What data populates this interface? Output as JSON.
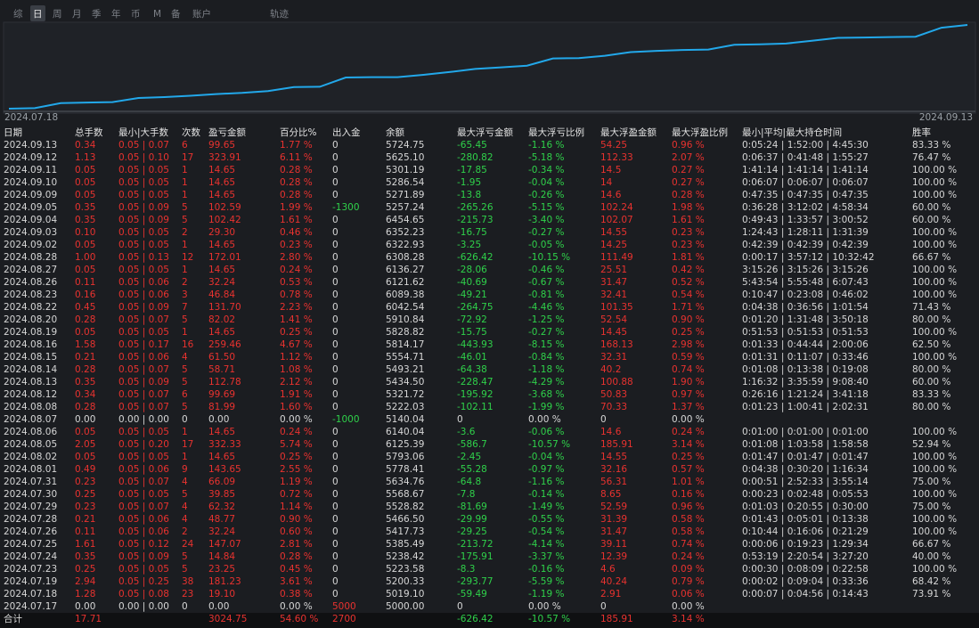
{
  "tabs": [
    "综",
    "日",
    "周",
    "月",
    "季",
    "年",
    "币",
    "M",
    "备",
    "账户",
    "轨迹"
  ],
  "chart": {
    "x_labels": [
      "2024.07.18",
      "2024.09.13"
    ]
  },
  "table": {
    "headers": [
      "日期",
      "总手数",
      "最小|大手数",
      "次数",
      "盈亏金额",
      "百分比%",
      "出入金",
      "余额",
      "最大浮亏金额",
      "最大浮亏比例",
      "最大浮盈金额",
      "最大浮盈比例",
      "最小|平均|最大持仓时间",
      "胜率"
    ],
    "rows": [
      [
        "2024.09.13",
        "0.34",
        "0.05 | 0.07",
        "6",
        "99.65",
        "1.77 %",
        "0",
        "5724.75",
        "-65.45",
        "-1.16 %",
        "54.25",
        "0.96 %",
        "0:05:24 | 1:52:00 | 4:45:30",
        "83.33 %"
      ],
      [
        "2024.09.12",
        "1.13",
        "0.05 | 0.10",
        "17",
        "323.91",
        "6.11 %",
        "0",
        "5625.10",
        "-280.82",
        "-5.18 %",
        "112.33",
        "2.07 %",
        "0:06:37 | 0:41:48 | 1:55:27",
        "76.47 %"
      ],
      [
        "2024.09.11",
        "0.05",
        "0.05 | 0.05",
        "1",
        "14.65",
        "0.28 %",
        "0",
        "5301.19",
        "-17.85",
        "-0.34 %",
        "14.5",
        "0.27 %",
        "1:41:14 | 1:41:14 | 1:41:14",
        "100.00 %"
      ],
      [
        "2024.09.10",
        "0.05",
        "0.05 | 0.05",
        "1",
        "14.65",
        "0.28 %",
        "0",
        "5286.54",
        "-1.95",
        "-0.04 %",
        "14",
        "0.27 %",
        "0:06:07 | 0:06:07 | 0:06:07",
        "100.00 %"
      ],
      [
        "2024.09.09",
        "0.05",
        "0.05 | 0.05",
        "1",
        "14.65",
        "0.28 %",
        "0",
        "5271.89",
        "-13.8",
        "-0.26 %",
        "14.6",
        "0.28 %",
        "0:47:35 | 0:47:35 | 0:47:35",
        "100.00 %"
      ],
      [
        "2024.09.05",
        "0.35",
        "0.05 | 0.09",
        "5",
        "102.59",
        "1.99 %",
        "-1300",
        "5257.24",
        "-265.26",
        "-5.15 %",
        "102.24",
        "1.98 %",
        "0:36:28 | 3:12:02 | 4:58:34",
        "60.00 %"
      ],
      [
        "2024.09.04",
        "0.35",
        "0.05 | 0.09",
        "5",
        "102.42",
        "1.61 %",
        "0",
        "6454.65",
        "-215.73",
        "-3.40 %",
        "102.07",
        "1.61 %",
        "0:49:43 | 1:33:57 | 3:00:52",
        "60.00 %"
      ],
      [
        "2024.09.03",
        "0.10",
        "0.05 | 0.05",
        "2",
        "29.30",
        "0.46 %",
        "0",
        "6352.23",
        "-16.75",
        "-0.27 %",
        "14.55",
        "0.23 %",
        "1:24:43 | 1:28:11 | 1:31:39",
        "100.00 %"
      ],
      [
        "2024.09.02",
        "0.05",
        "0.05 | 0.05",
        "1",
        "14.65",
        "0.23 %",
        "0",
        "6322.93",
        "-3.25",
        "-0.05 %",
        "14.25",
        "0.23 %",
        "0:42:39 | 0:42:39 | 0:42:39",
        "100.00 %"
      ],
      [
        "2024.08.28",
        "1.00",
        "0.05 | 0.13",
        "12",
        "172.01",
        "2.80 %",
        "0",
        "6308.28",
        "-626.42",
        "-10.15 %",
        "111.49",
        "1.81 %",
        "0:00:17 | 3:57:12 | 10:32:42",
        "66.67 %"
      ],
      [
        "2024.08.27",
        "0.05",
        "0.05 | 0.05",
        "1",
        "14.65",
        "0.24 %",
        "0",
        "6136.27",
        "-28.06",
        "-0.46 %",
        "25.51",
        "0.42 %",
        "3:15:26 | 3:15:26 | 3:15:26",
        "100.00 %"
      ],
      [
        "2024.08.26",
        "0.11",
        "0.05 | 0.06",
        "2",
        "32.24",
        "0.53 %",
        "0",
        "6121.62",
        "-40.69",
        "-0.67 %",
        "31.47",
        "0.52 %",
        "5:43:54 | 5:55:48 | 6:07:43",
        "100.00 %"
      ],
      [
        "2024.08.23",
        "0.16",
        "0.05 | 0.06",
        "3",
        "46.84",
        "0.78 %",
        "0",
        "6089.38",
        "-49.21",
        "-0.81 %",
        "32.41",
        "0.54 %",
        "0:10:47 | 0:23:08 | 0:46:02",
        "100.00 %"
      ],
      [
        "2024.08.22",
        "0.45",
        "0.05 | 0.09",
        "7",
        "131.70",
        "2.23 %",
        "0",
        "6042.54",
        "-264.75",
        "-4.46 %",
        "101.35",
        "1.71 %",
        "0:04:38 | 0:36:56 | 1:01:54",
        "71.43 %"
      ],
      [
        "2024.08.20",
        "0.28",
        "0.05 | 0.07",
        "5",
        "82.02",
        "1.41 %",
        "0",
        "5910.84",
        "-72.92",
        "-1.25 %",
        "52.54",
        "0.90 %",
        "0:01:20 | 1:31:48 | 3:50:18",
        "80.00 %"
      ],
      [
        "2024.08.19",
        "0.05",
        "0.05 | 0.05",
        "1",
        "14.65",
        "0.25 %",
        "0",
        "5828.82",
        "-15.75",
        "-0.27 %",
        "14.45",
        "0.25 %",
        "0:51:53 | 0:51:53 | 0:51:53",
        "100.00 %"
      ],
      [
        "2024.08.16",
        "1.58",
        "0.05 | 0.17",
        "16",
        "259.46",
        "4.67 %",
        "0",
        "5814.17",
        "-443.93",
        "-8.15 %",
        "168.13",
        "2.98 %",
        "0:01:33 | 0:44:44 | 2:00:06",
        "62.50 %"
      ],
      [
        "2024.08.15",
        "0.21",
        "0.05 | 0.06",
        "4",
        "61.50",
        "1.12 %",
        "0",
        "5554.71",
        "-46.01",
        "-0.84 %",
        "32.31",
        "0.59 %",
        "0:01:31 | 0:11:07 | 0:33:46",
        "100.00 %"
      ],
      [
        "2024.08.14",
        "0.28",
        "0.05 | 0.07",
        "5",
        "58.71",
        "1.08 %",
        "0",
        "5493.21",
        "-64.38",
        "-1.18 %",
        "40.2",
        "0.74 %",
        "0:01:08 | 0:13:38 | 0:19:08",
        "80.00 %"
      ],
      [
        "2024.08.13",
        "0.35",
        "0.05 | 0.09",
        "5",
        "112.78",
        "2.12 %",
        "0",
        "5434.50",
        "-228.47",
        "-4.29 %",
        "100.88",
        "1.90 %",
        "1:16:32 | 3:35:59 | 9:08:40",
        "60.00 %"
      ],
      [
        "2024.08.12",
        "0.34",
        "0.05 | 0.07",
        "6",
        "99.69",
        "1.91 %",
        "0",
        "5321.72",
        "-195.92",
        "-3.68 %",
        "50.83",
        "0.97 %",
        "0:26:16 | 1:21:24 | 3:41:18",
        "83.33 %"
      ],
      [
        "2024.08.08",
        "0.28",
        "0.05 | 0.07",
        "5",
        "81.99",
        "1.60 %",
        "0",
        "5222.03",
        "-102.11",
        "-1.99 %",
        "70.33",
        "1.37 %",
        "0:01:23 | 1:00:41 | 2:02:31",
        "80.00 %"
      ],
      [
        "2024.08.07",
        "0.00",
        "0.00 | 0.00",
        "0",
        "0.00",
        "0.00 %",
        "-1000",
        "5140.04",
        "0",
        "0.00 %",
        "0",
        "0.00 %",
        null,
        null
      ],
      [
        "2024.08.06",
        "0.05",
        "0.05 | 0.05",
        "1",
        "14.65",
        "0.24 %",
        "0",
        "6140.04",
        "-3.6",
        "-0.06 %",
        "14.6",
        "0.24 %",
        "0:01:00 | 0:01:00 | 0:01:00",
        "100.00 %"
      ],
      [
        "2024.08.05",
        "2.05",
        "0.05 | 0.20",
        "17",
        "332.33",
        "5.74 %",
        "0",
        "6125.39",
        "-586.7",
        "-10.57 %",
        "185.91",
        "3.14 %",
        "0:01:08 | 1:03:58 | 1:58:58",
        "52.94 %"
      ],
      [
        "2024.08.02",
        "0.05",
        "0.05 | 0.05",
        "1",
        "14.65",
        "0.25 %",
        "0",
        "5793.06",
        "-2.45",
        "-0.04 %",
        "14.55",
        "0.25 %",
        "0:01:47 | 0:01:47 | 0:01:47",
        "100.00 %"
      ],
      [
        "2024.08.01",
        "0.49",
        "0.05 | 0.06",
        "9",
        "143.65",
        "2.55 %",
        "0",
        "5778.41",
        "-55.28",
        "-0.97 %",
        "32.16",
        "0.57 %",
        "0:04:38 | 0:30:20 | 1:16:34",
        "100.00 %"
      ],
      [
        "2024.07.31",
        "0.23",
        "0.05 | 0.07",
        "4",
        "66.09",
        "1.19 %",
        "0",
        "5634.76",
        "-64.8",
        "-1.16 %",
        "56.31",
        "1.01 %",
        "0:00:51 | 2:52:33 | 3:55:14",
        "75.00 %"
      ],
      [
        "2024.07.30",
        "0.25",
        "0.05 | 0.05",
        "5",
        "39.85",
        "0.72 %",
        "0",
        "5568.67",
        "-7.8",
        "-0.14 %",
        "8.65",
        "0.16 %",
        "0:00:23 | 0:02:48 | 0:05:53",
        "100.00 %"
      ],
      [
        "2024.07.29",
        "0.23",
        "0.05 | 0.07",
        "4",
        "62.32",
        "1.14 %",
        "0",
        "5528.82",
        "-81.69",
        "-1.49 %",
        "52.59",
        "0.96 %",
        "0:01:03 | 0:20:55 | 0:30:00",
        "75.00 %"
      ],
      [
        "2024.07.28",
        "0.21",
        "0.05 | 0.06",
        "4",
        "48.77",
        "0.90 %",
        "0",
        "5466.50",
        "-29.99",
        "-0.55 %",
        "31.39",
        "0.58 %",
        "0:01:43 | 0:05:01 | 0:13:38",
        "100.00 %"
      ],
      [
        "2024.07.26",
        "0.11",
        "0.05 | 0.06",
        "2",
        "32.24",
        "0.60 %",
        "0",
        "5417.73",
        "-29.25",
        "-0.54 %",
        "31.47",
        "0.58 %",
        "0:10:44 | 0:16:06 | 0:21:29",
        "100.00 %"
      ],
      [
        "2024.07.25",
        "1.61",
        "0.05 | 0.12",
        "24",
        "147.07",
        "2.81 %",
        "0",
        "5385.49",
        "-213.72",
        "-4.14 %",
        "39.11",
        "0.74 %",
        "0:00:06 | 0:19:23 | 1:29:34",
        "66.67 %"
      ],
      [
        "2024.07.24",
        "0.35",
        "0.05 | 0.09",
        "5",
        "14.84",
        "0.28 %",
        "0",
        "5238.42",
        "-175.91",
        "-3.37 %",
        "12.39",
        "0.24 %",
        "0:53:19 | 2:20:54 | 3:27:20",
        "40.00 %"
      ],
      [
        "2024.07.23",
        "0.25",
        "0.05 | 0.05",
        "5",
        "23.25",
        "0.45 %",
        "0",
        "5223.58",
        "-8.3",
        "-0.16 %",
        "4.6",
        "0.09 %",
        "0:00:30 | 0:08:09 | 0:22:58",
        "100.00 %"
      ],
      [
        "2024.07.19",
        "2.94",
        "0.05 | 0.25",
        "38",
        "181.23",
        "3.61 %",
        "0",
        "5200.33",
        "-293.77",
        "-5.59 %",
        "40.24",
        "0.79 %",
        "0:00:02 | 0:09:04 | 0:33:36",
        "68.42 %"
      ],
      [
        "2024.07.18",
        "1.28",
        "0.05 | 0.08",
        "23",
        "19.10",
        "0.38 %",
        "0",
        "5019.10",
        "-59.49",
        "-1.19 %",
        "2.91",
        "0.06 %",
        "0:00:07 | 0:04:56 | 0:14:43",
        "73.91 %"
      ],
      [
        "2024.07.17",
        "0.00",
        "0.00 | 0.00",
        "0",
        "0.00",
        "0.00 %",
        "5000",
        "5000.00",
        "0",
        "0.00 %",
        "0",
        "0.00 %",
        null,
        null
      ]
    ],
    "total": [
      "合计",
      "17.71",
      null,
      null,
      "3024.75",
      "54.60 %",
      "2700",
      null,
      "-626.42",
      "-10.57 %",
      "185.91",
      "3.14 %",
      null,
      null
    ]
  }
}
